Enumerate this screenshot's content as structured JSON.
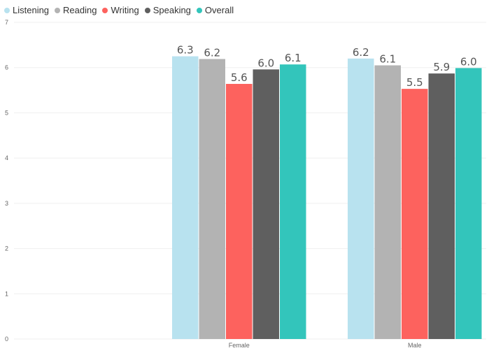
{
  "chart_data": {
    "type": "bar",
    "title": "",
    "xlabel": "",
    "ylabel": "",
    "categories": [
      "Female",
      "Male"
    ],
    "series": [
      {
        "name": "Listening",
        "color": "#b8e2ef",
        "values": [
          6.3,
          6.2
        ]
      },
      {
        "name": "Reading",
        "color": "#b3b3b3",
        "values": [
          6.2,
          6.1
        ]
      },
      {
        "name": "Writing",
        "color": "#fd625e",
        "values": [
          5.6,
          5.5
        ]
      },
      {
        "name": "Speaking",
        "color": "#5f5f5f",
        "values": [
          6.0,
          5.9
        ]
      },
      {
        "name": "Overall",
        "color": "#33c5bb",
        "values": [
          6.1,
          6.0
        ]
      }
    ],
    "ylim": [
      0,
      7
    ],
    "yticks": [
      "0",
      "1",
      "2",
      "3",
      "4",
      "5",
      "6",
      "7"
    ],
    "data_labels": [
      [
        "6.3",
        "6.2"
      ],
      [
        "6.2",
        "6.1"
      ],
      [
        "5.6",
        "5.5"
      ],
      [
        "6.0",
        "5.9"
      ],
      [
        "6.1",
        "6.0"
      ]
    ],
    "bar_heights": [
      [
        6.25,
        6.2
      ],
      [
        6.19,
        6.05
      ],
      [
        5.64,
        5.53
      ],
      [
        5.96,
        5.87
      ],
      [
        6.07,
        5.99
      ]
    ],
    "legend_position": "top-left",
    "grid": true
  }
}
